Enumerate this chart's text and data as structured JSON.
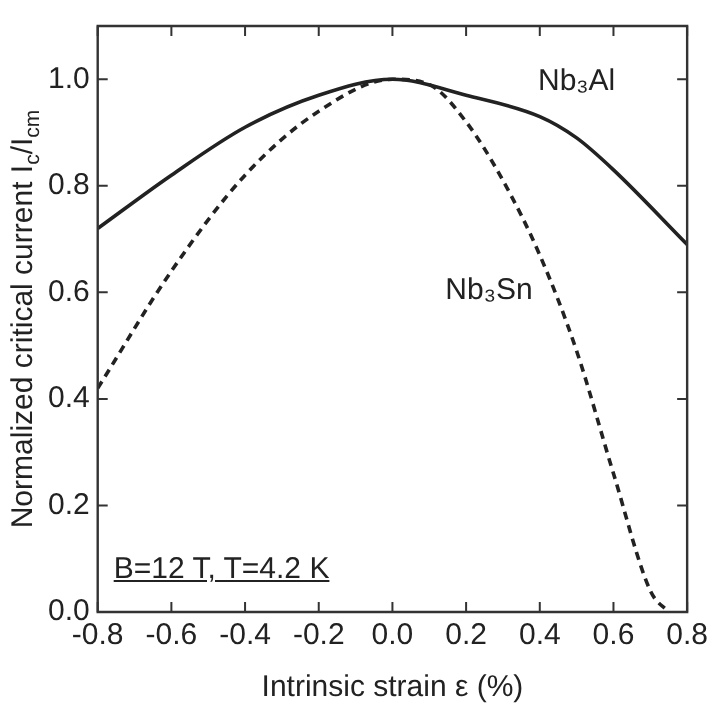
{
  "chart_data": {
    "type": "line",
    "xlabel": "Intrinsic strain ε (%)",
    "ylabel": "Normalized critical current I$_{c}$/I$_{cm}$",
    "annotations": [
      "B=12 T, T=4.2 K"
    ],
    "series": [
      {
        "name": "Nb₃Al",
        "color": "#222222",
        "line_style": "solid",
        "x": [
          -0.8,
          -0.6,
          -0.4,
          -0.2,
          0.0,
          0.2,
          0.4,
          0.5,
          0.6,
          0.8
        ],
        "values": [
          0.72,
          0.82,
          0.91,
          0.97,
          1.0,
          0.97,
          0.93,
          0.89,
          0.83,
          0.69
        ]
      },
      {
        "name": "Nb₃Sn",
        "color": "#222222",
        "line_style": "dashed",
        "x": [
          -0.8,
          -0.6,
          -0.4,
          -0.2,
          0.0,
          0.1,
          0.2,
          0.3,
          0.4,
          0.5,
          0.6,
          0.7,
          0.75
        ],
        "values": [
          0.42,
          0.64,
          0.82,
          0.94,
          1.0,
          0.99,
          0.92,
          0.81,
          0.67,
          0.49,
          0.26,
          0.04,
          0.0
        ]
      }
    ],
    "xlim": [
      -0.8,
      0.8
    ],
    "xticks": [
      -0.8,
      -0.6,
      -0.4,
      -0.2,
      {
        "value": 0,
        "label": "0.0"
      },
      0.2,
      0.4,
      0.6,
      0.8
    ],
    "ylim": [
      0,
      1.1
    ],
    "yticks": [
      {
        "value": 0,
        "label": "0.0"
      },
      0.2,
      0.4,
      0.6,
      0.8,
      {
        "value": 1,
        "label": "1.0"
      }
    ],
    "grid": false,
    "legend": false,
    "marker": "none"
  }
}
